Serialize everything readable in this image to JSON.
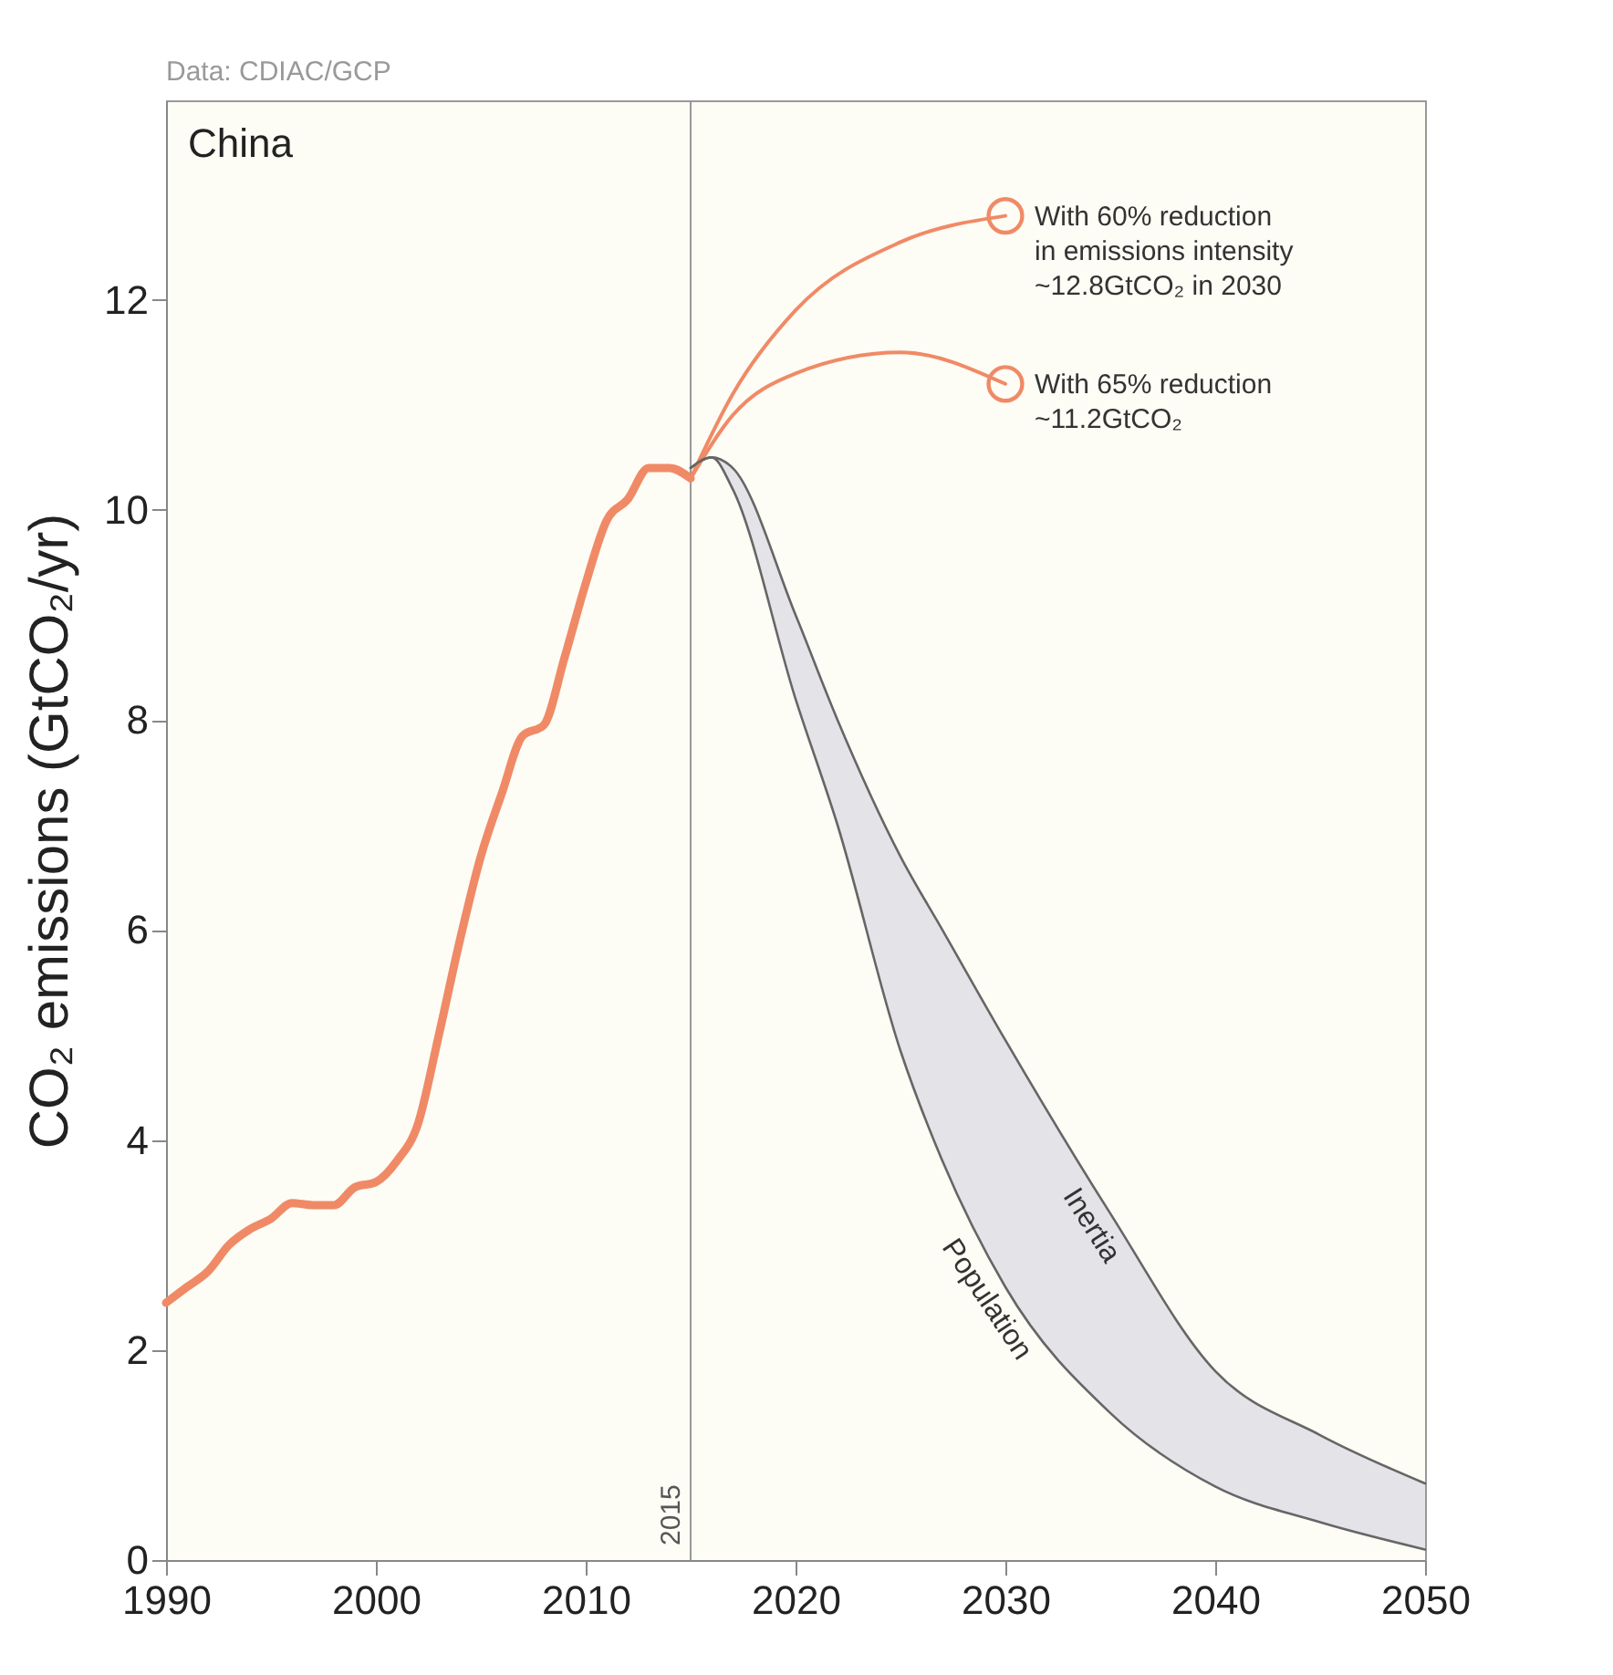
{
  "chart_data": {
    "type": "line",
    "title": "China",
    "ylabel": "CO₂ emissions (GtCO₂/yr)",
    "xlim": [
      1990,
      2050
    ],
    "xticks": [
      1990,
      2000,
      2010,
      2020,
      2030,
      2040,
      2050
    ],
    "ylim": [
      0,
      13.9
    ],
    "yticks": [
      0,
      2,
      4,
      6,
      8,
      10,
      12
    ],
    "grid": false,
    "series": [
      {
        "color": "#f08a66",
        "x": [
          1990,
          1991,
          1992,
          1993,
          1994,
          1995,
          1996,
          1997,
          1998,
          1999,
          2000,
          2001,
          2002,
          2003,
          2004,
          2005,
          2006,
          2007,
          2008,
          2009,
          2010,
          2011,
          2012,
          2013,
          2014,
          2015
        ],
        "values": [
          2.45,
          2.6,
          2.75,
          3.0,
          3.15,
          3.25,
          3.4,
          3.38,
          3.38,
          3.55,
          3.6,
          3.8,
          4.15,
          5.0,
          5.9,
          6.7,
          7.3,
          7.85,
          7.95,
          8.6,
          9.3,
          9.9,
          10.1,
          10.4,
          10.4,
          10.3
        ]
      },
      {
        "color": "#f08a66",
        "x": [
          2015,
          2017,
          2020,
          2025,
          2030
        ],
        "values": [
          10.3,
          11.1,
          11.9,
          12.55,
          12.8
        ]
      },
      {
        "color": "#f08a66",
        "x": [
          2015,
          2017,
          2020,
          2025,
          2030
        ],
        "values": [
          10.3,
          10.9,
          11.3,
          11.5,
          11.2
        ]
      },
      {
        "type": "scatter",
        "marker": "circle",
        "color": "#f08a66",
        "x": [
          2030,
          2030
        ],
        "values": [
          12.8,
          11.2
        ]
      },
      {
        "name": "Population",
        "color": "#666666",
        "x": [
          2015,
          2016,
          2017,
          2020,
          2022,
          2025,
          2027,
          2030,
          2035,
          2040,
          2045,
          2050
        ],
        "values": [
          10.4,
          10.5,
          10.2,
          8.2,
          7.0,
          4.85,
          3.8,
          2.6,
          1.4,
          0.7,
          0.36,
          0.1
        ],
        "lower": [
          10.4,
          10.5,
          10.2,
          8.2,
          7.0,
          4.85,
          3.8,
          2.6,
          1.4,
          0.7,
          0.36,
          0.1
        ],
        "upper": [
          10.4,
          10.5,
          10.4,
          9.0,
          8.0,
          6.7,
          6.0,
          4.95,
          3.3,
          1.8,
          1.19,
          0.73
        ]
      },
      {
        "name": "Inertia",
        "color": "#666666",
        "x": [
          2015,
          2016,
          2017,
          2020,
          2022,
          2025,
          2027,
          2030,
          2035,
          2040,
          2045,
          2050
        ],
        "values": [
          10.4,
          10.5,
          10.4,
          9.0,
          8.0,
          6.7,
          6.0,
          4.95,
          3.3,
          1.8,
          1.19,
          0.73
        ]
      }
    ],
    "ref_lines": [
      {
        "axis": "x",
        "value": 2015,
        "label": "2015"
      }
    ],
    "annotations": [
      "Data: CDIAC/GCP",
      {
        "text": "With 60% reduction\nin emissions intensity\n~12.8GtCO₂ in 2030",
        "x": 2030,
        "y": 12.8
      },
      {
        "text": "With 65% reduction\n~11.2GtCO₂",
        "x": 2030,
        "y": 11.2
      }
    ]
  }
}
